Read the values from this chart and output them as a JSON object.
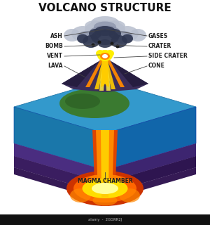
{
  "title": "VOLCANO STRUCTURE",
  "title_fontsize": 11,
  "title_fontweight": "bold",
  "background_color": "#ffffff",
  "labels_left": [
    "ASH",
    "BOMB",
    "VENT",
    "LAVA"
  ],
  "labels_right": [
    "GASES",
    "CRATER",
    "SIDE CRATER",
    "CONE"
  ],
  "label_bottom": "MAGMA CHAMBER",
  "label_fontsize": 5.5,
  "colors": {
    "sky": "#ffffff",
    "ash_cloud_outer": "#b8bfce",
    "ash_cloud_mid": "#8890a8",
    "ash_cloud_inner": "#2e3650",
    "volcano_body": "#3a2d5a",
    "volcano_dark": "#261d40",
    "lava_orange": "#ff8800",
    "lava_yellow": "#ffcc00",
    "lava_red": "#dd4400",
    "lava_bright": "#ffee44",
    "magma_orange": "#ff6600",
    "magma_yellow": "#ffdd00",
    "magma_red": "#cc3300",
    "ground_blue_top": "#3399cc",
    "ground_blue_left": "#1a77aa",
    "ground_blue_right": "#1166aa",
    "ground_layer1_top": "#6644aa",
    "ground_layer1_left": "#4a2d80",
    "ground_layer1_right": "#3d2570",
    "ground_layer2_top": "#4a2d70",
    "ground_layer2_left": "#3a1d60",
    "ground_layer2_right": "#2e1550",
    "ground_layer3_top": "#351a55",
    "ground_layer3_left": "#261040",
    "green_island": "#3a7a30",
    "green_dark": "#2a5a22",
    "explosion_yellow": "#ffee00",
    "explosion_white": "#ffffff",
    "explosion_orange": "#ff8800"
  }
}
